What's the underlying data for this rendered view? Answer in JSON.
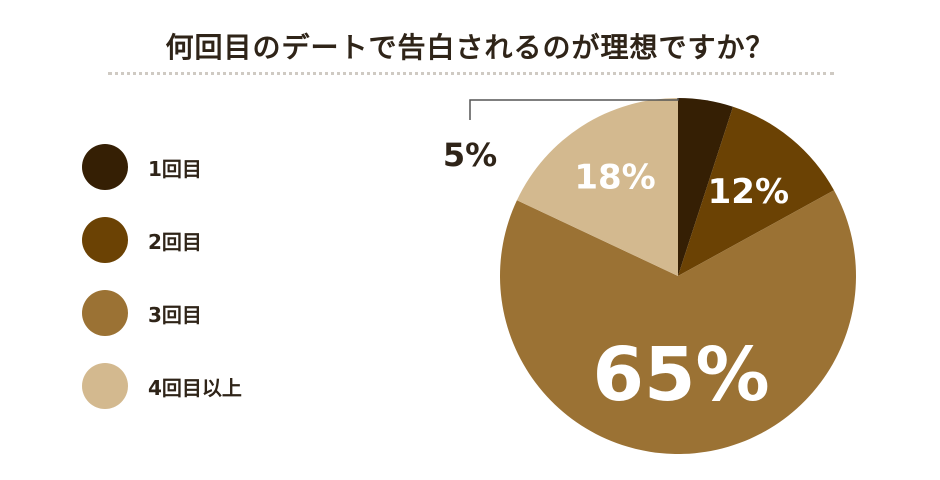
{
  "chart_data": {
    "type": "pie",
    "title": "何回目のデートで告白されるのが理想ですか？",
    "slices": [
      {
        "label": "1回目",
        "value": 5,
        "value_label": "5%",
        "color": "#351f04"
      },
      {
        "label": "2回目",
        "value": 12,
        "value_label": "12%",
        "color": "#6b4204"
      },
      {
        "label": "3回目",
        "value": 65,
        "value_label": "65%",
        "color": "#9b7234"
      },
      {
        "label": "4回目以上",
        "value": 18,
        "value_label": "18%",
        "color": "#d3b98f"
      }
    ],
    "legend_position": "left",
    "start_angle_deg": 0,
    "direction": "clockwise"
  }
}
